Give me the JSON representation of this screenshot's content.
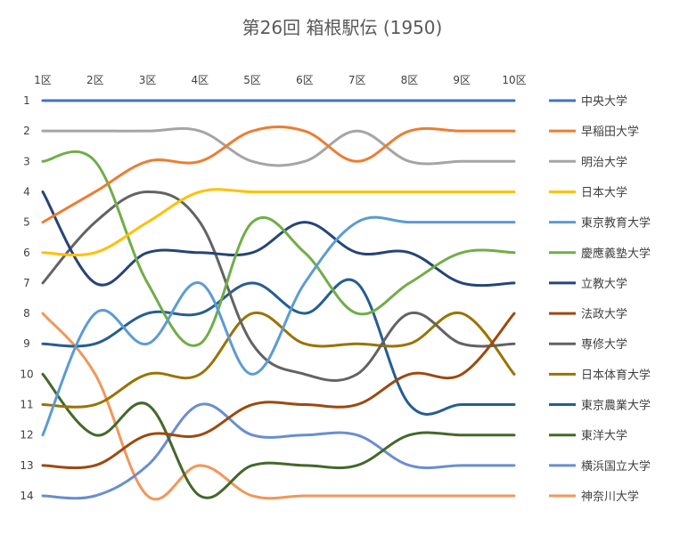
{
  "chart_data": {
    "type": "line",
    "title": "第26回 箱根駅伝 (1950)",
    "xlabel": "",
    "ylabel": "",
    "categories": [
      "1区",
      "2区",
      "3区",
      "4区",
      "5区",
      "6区",
      "7区",
      "8区",
      "9区",
      "10区"
    ],
    "y_ticks": [
      "1",
      "2",
      "3",
      "4",
      "5",
      "6",
      "7",
      "8",
      "9",
      "10",
      "11",
      "12",
      "13",
      "14"
    ],
    "ylim": [
      1,
      14
    ],
    "y_inverted": true,
    "grid": false,
    "legend_position": "right",
    "series": [
      {
        "name": "中央大学",
        "color": "#4472C4",
        "values": [
          1,
          1,
          1,
          1,
          1,
          1,
          1,
          1,
          1,
          1
        ]
      },
      {
        "name": "早稲田大学",
        "color": "#ED7D31",
        "values": [
          5,
          4,
          3,
          3,
          2,
          2,
          3,
          2,
          2,
          2
        ]
      },
      {
        "name": "明治大学",
        "color": "#A5A5A5",
        "values": [
          2,
          2,
          2,
          2,
          3,
          3,
          2,
          3,
          3,
          3
        ]
      },
      {
        "name": "日本大学",
        "color": "#FFC000",
        "values": [
          6,
          6,
          5,
          4,
          4,
          4,
          4,
          4,
          4,
          4
        ]
      },
      {
        "name": "東京教育大学",
        "color": "#5B9BD5",
        "values": [
          12,
          8,
          9,
          7,
          10,
          7,
          5,
          5,
          5,
          5
        ]
      },
      {
        "name": "慶應義塾大学",
        "color": "#70AD47",
        "values": [
          3,
          3,
          7,
          9,
          5,
          6,
          8,
          7,
          6,
          6
        ]
      },
      {
        "name": "立教大学",
        "color": "#264478",
        "values": [
          4,
          7,
          6,
          6,
          6,
          5,
          6,
          6,
          7,
          7
        ]
      },
      {
        "name": "法政大学",
        "color": "#9E480E",
        "values": [
          13,
          13,
          12,
          12,
          11,
          11,
          11,
          10,
          10,
          8
        ]
      },
      {
        "name": "専修大学",
        "color": "#636363",
        "values": [
          7,
          5,
          4,
          5,
          9,
          10,
          10,
          8,
          9,
          9
        ]
      },
      {
        "name": "日本体育大学",
        "color": "#997300",
        "values": [
          11,
          11,
          10,
          10,
          8,
          9,
          9,
          9,
          8,
          10
        ]
      },
      {
        "name": "東京農業大学",
        "color": "#255E91",
        "values": [
          9,
          9,
          8,
          8,
          7,
          8,
          7,
          11,
          11,
          11
        ]
      },
      {
        "name": "東洋大学",
        "color": "#43682B",
        "values": [
          10,
          12,
          11,
          14,
          13,
          13,
          13,
          12,
          12,
          12
        ]
      },
      {
        "name": "横浜国立大学",
        "color": "#698ED0",
        "values": [
          14,
          14,
          13,
          11,
          12,
          12,
          12,
          13,
          13,
          13
        ]
      },
      {
        "name": "神奈川大学",
        "color": "#F1975A",
        "values": [
          8,
          10,
          14,
          13,
          14,
          14,
          14,
          14,
          14,
          14
        ]
      }
    ]
  }
}
